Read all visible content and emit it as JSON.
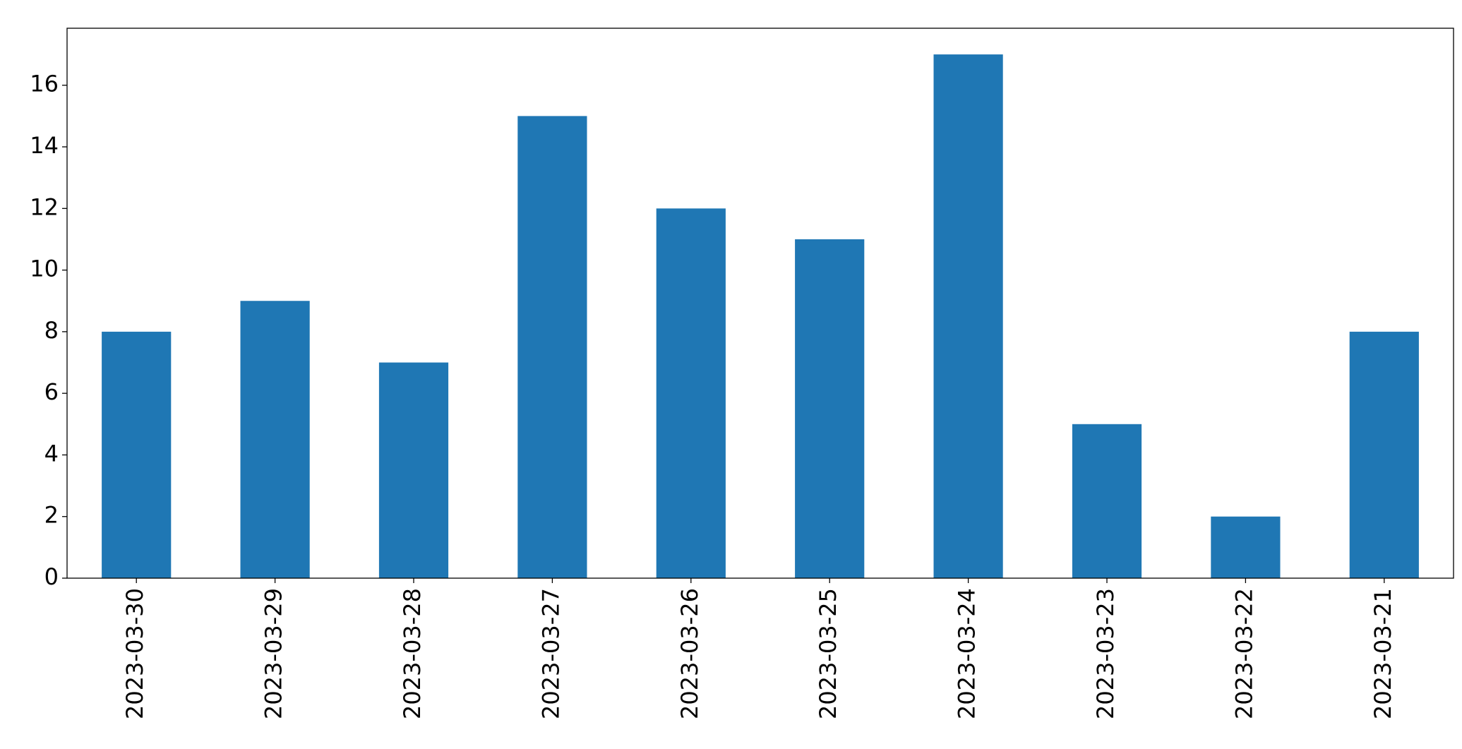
{
  "chart_data": {
    "type": "bar",
    "categories": [
      "2023-03-30",
      "2023-03-29",
      "2023-03-28",
      "2023-03-27",
      "2023-03-26",
      "2023-03-25",
      "2023-03-24",
      "2023-03-23",
      "2023-03-22",
      "2023-03-21"
    ],
    "values": [
      8,
      9,
      7,
      15,
      12,
      11,
      17,
      5,
      2,
      8
    ],
    "color": "#1f77b4",
    "ylim": [
      0,
      17.85
    ],
    "yticks": [
      0,
      2,
      4,
      6,
      8,
      10,
      12,
      14,
      16
    ],
    "grid": false
  }
}
